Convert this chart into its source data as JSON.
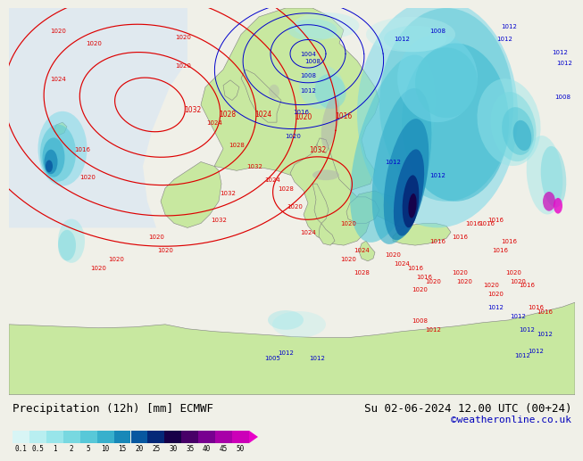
{
  "title_left": "Precipitation (12h) [mm] ECMWF",
  "title_right": "Su 02-06-2024 12.00 UTC (00+24)",
  "credit": "©weatheronline.co.uk",
  "colorbar_labels": [
    "0.1",
    "0.5",
    "1",
    "2",
    "5",
    "10",
    "15",
    "20",
    "25",
    "30",
    "35",
    "40",
    "45",
    "50"
  ],
  "colorbar_colors": [
    "#d8f5f5",
    "#b8eef0",
    "#98e5ea",
    "#78d8e0",
    "#58c8d8",
    "#38b0cc",
    "#1888b8",
    "#0858a0",
    "#042878",
    "#180048",
    "#480068",
    "#780090",
    "#a800a8",
    "#cc00b8",
    "#e800c8"
  ],
  "bg_color": "#f0f0e8",
  "land_color": "#c8e8a0",
  "sea_color": "#e8e8e0",
  "mountain_color": "#b0b0b0",
  "isobar_red": "#dd0000",
  "isobar_blue": "#0000cc",
  "title_fontsize": 9,
  "credit_fontsize": 8,
  "label_fontsize": 7.5
}
